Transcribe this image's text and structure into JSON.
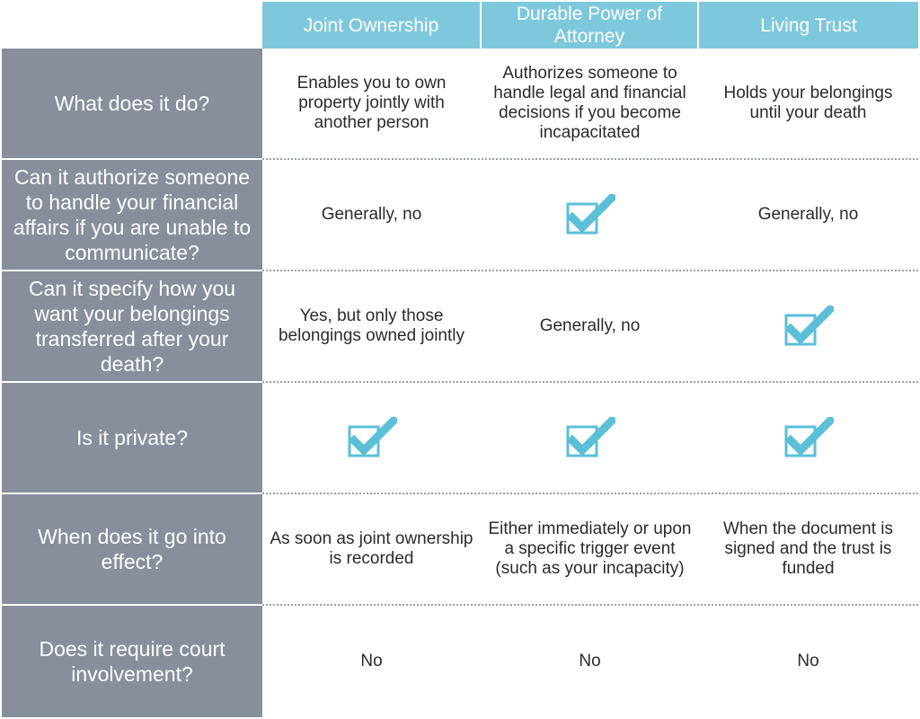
{
  "header": {
    "columns": [
      "Joint Ownership",
      "Durable Power of Attorney",
      "Living Trust"
    ]
  },
  "rows": [
    {
      "label": "What does it do?",
      "cells": [
        {
          "text": "Enables you to own property jointly with another person"
        },
        {
          "text": "Authorizes someone to handle legal and financial decisions if you become incapacitated"
        },
        {
          "text": "Holds your belongings until your death"
        }
      ]
    },
    {
      "label": "Can it authorize someone to handle your financial affairs if you are unable to communicate?",
      "cells": [
        {
          "text": "Generally, no"
        },
        {
          "check": true
        },
        {
          "text": "Generally, no"
        }
      ]
    },
    {
      "label": "Can it specify how you want your belongings transferred after your death?",
      "cells": [
        {
          "text": "Yes, but only those belongings owned jointly"
        },
        {
          "text": "Generally, no"
        },
        {
          "check": true
        }
      ]
    },
    {
      "label": "Is it private?",
      "cells": [
        {
          "check": true
        },
        {
          "check": true
        },
        {
          "check": true
        }
      ]
    },
    {
      "label": "When does it go into effect?",
      "cells": [
        {
          "text": "As soon as joint ownership is recorded"
        },
        {
          "text": "Either immediately or upon a specific trigger event (such as your incapacity)"
        },
        {
          "text": "When the document is signed and the trust is funded"
        }
      ]
    },
    {
      "label": "Does it require court involvement?",
      "cells": [
        {
          "text": "No"
        },
        {
          "text": "No"
        },
        {
          "text": "No"
        }
      ]
    }
  ],
  "colors": {
    "header_bg": "#7ec8dc",
    "label_bg": "#878f9b",
    "check_color": "#5bbfd8"
  },
  "icons": {
    "check": "checkbox-checked-icon"
  }
}
